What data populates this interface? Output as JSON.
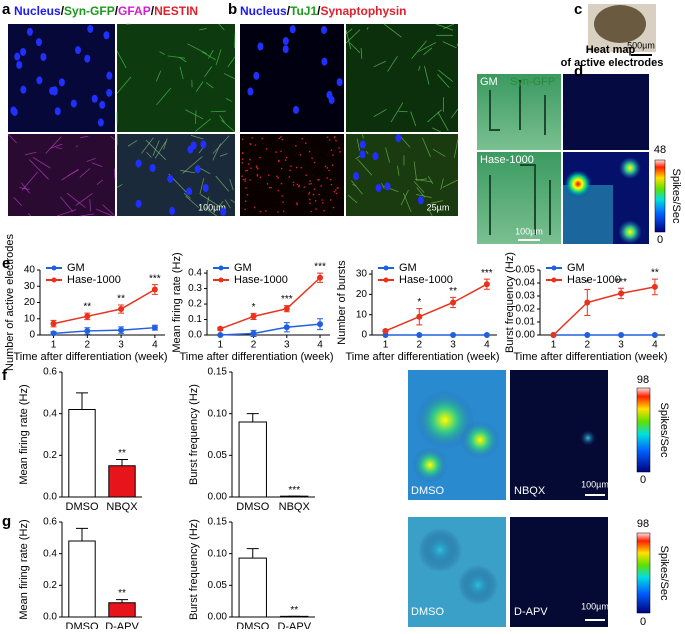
{
  "panel_labels": [
    "a",
    "b",
    "c",
    "d",
    "e",
    "f",
    "g"
  ],
  "panel_a": {
    "header": [
      {
        "text": "Nucleus",
        "color": "#1a1aff"
      },
      {
        "text": "/",
        "color": "#000000"
      },
      {
        "text": "Syn-GFP",
        "color": "#1a9a1a"
      },
      {
        "text": "/",
        "color": "#000000"
      },
      {
        "text": "GFAP",
        "color": "#d020d0"
      },
      {
        "text": "/",
        "color": "#000000"
      },
      {
        "text": "NESTIN",
        "color": "#e0202a"
      }
    ],
    "scale": "100µm"
  },
  "panel_b": {
    "header": [
      {
        "text": "Nucleus",
        "color": "#1a1aff"
      },
      {
        "text": "/",
        "color": "#000000"
      },
      {
        "text": "TuJ1",
        "color": "#1a9a1a"
      },
      {
        "text": "/",
        "color": "#000000"
      },
      {
        "text": "Synaptophysin",
        "color": "#e0202a"
      }
    ],
    "scale": "25µm"
  },
  "panel_c": {
    "scale": "500µm"
  },
  "panel_d": {
    "title": "Heat map of active electrodes",
    "rows": [
      "GM",
      "Hase-1000"
    ],
    "overlay": "Syn-GFP",
    "scale": "100µm",
    "colorbar": {
      "max": "48",
      "min": "0",
      "label": "Spikes/Sec"
    }
  },
  "panel_f_images": {
    "labels": [
      "DMSO",
      "NBQX"
    ],
    "scale": "100µm",
    "colorbar": {
      "max": "98",
      "min": "0",
      "label": "Spikes/Sec"
    }
  },
  "panel_g_images": {
    "labels": [
      "DMSO",
      "D-APV"
    ],
    "scale": "100µm",
    "colorbar": {
      "max": "98",
      "min": "0",
      "label": "Spikes/Sec"
    }
  },
  "chart_data": [
    {
      "type": "line",
      "ylabel": "Number of active electrodes",
      "xlabel": "Time after differentiation (week)",
      "x": [
        1,
        2,
        3,
        4
      ],
      "xlim": [
        0.6,
        4.3
      ],
      "xticks": [
        1,
        2,
        3,
        4
      ],
      "ylim": [
        0,
        40
      ],
      "yticks": [
        0,
        10,
        20,
        30,
        40
      ],
      "series": [
        {
          "name": "GM",
          "color": "#2060e0",
          "values": [
            1,
            2.5,
            3,
            4.5
          ],
          "errors": [
            1,
            2,
            2,
            1.5
          ]
        },
        {
          "name": "Hase-1000",
          "color": "#e8321c",
          "values": [
            7,
            11.5,
            16,
            28
          ],
          "errors": [
            2,
            2,
            2.5,
            3
          ]
        }
      ],
      "significance": [
        null,
        "**",
        "**",
        "***"
      ]
    },
    {
      "type": "line",
      "ylabel": "Mean firing rate (Hz)",
      "xlabel": "Time after differentiation (week)",
      "x": [
        1,
        2,
        3,
        4
      ],
      "xlim": [
        0.6,
        4.3
      ],
      "xticks": [
        1,
        2,
        3,
        4
      ],
      "ylim": [
        0,
        0.42
      ],
      "yticks": [
        {
          "value": 0,
          "label": "0.0"
        },
        0.1,
        0.2,
        0.3,
        0.4
      ],
      "series": [
        {
          "name": "GM",
          "color": "#2060e0",
          "values": [
            0,
            0.01,
            0.05,
            0.07
          ],
          "errors": [
            0.005,
            0.02,
            0.03,
            0.035
          ]
        },
        {
          "name": "Hase-1000",
          "color": "#e8321c",
          "values": [
            0.04,
            0.12,
            0.17,
            0.37
          ],
          "errors": [
            0.01,
            0.02,
            0.02,
            0.03
          ]
        }
      ],
      "significance": [
        null,
        "*",
        "***",
        "***"
      ]
    },
    {
      "type": "line",
      "ylabel": "Number of bursts",
      "xlabel": "Time after differentiation (week)",
      "x": [
        1,
        2,
        3,
        4
      ],
      "xlim": [
        0.6,
        4.3
      ],
      "xticks": [
        1,
        2,
        3,
        4
      ],
      "ylim": [
        0,
        32
      ],
      "yticks": [
        0,
        10,
        20,
        30
      ],
      "series": [
        {
          "name": "GM",
          "color": "#2060e0",
          "values": [
            0,
            0,
            0,
            0
          ],
          "errors": [
            0,
            0,
            0,
            0
          ]
        },
        {
          "name": "Hase-1000",
          "color": "#e8321c",
          "values": [
            2,
            9,
            16,
            25
          ],
          "errors": [
            0.5,
            4,
            2.5,
            2.5
          ]
        }
      ],
      "significance": [
        null,
        "*",
        "**",
        "***"
      ]
    },
    {
      "type": "line",
      "ylabel": "Burst frequency (Hz)",
      "xlabel": "Time after differentiation (week)",
      "x": [
        1,
        2,
        3,
        4
      ],
      "xlim": [
        0.6,
        4.3
      ],
      "xticks": [
        1,
        2,
        3,
        4
      ],
      "ylim": [
        0,
        0.05
      ],
      "yticks": [
        {
          "value": 0,
          "label": "0.00"
        },
        0.01,
        0.02,
        0.03,
        0.04,
        {
          "value": 0.05,
          "label": "0.05"
        }
      ],
      "series": [
        {
          "name": "GM",
          "color": "#2060e0",
          "values": [
            0,
            0,
            0,
            0
          ],
          "errors": [
            0,
            0,
            0,
            0
          ]
        },
        {
          "name": "Hase-1000",
          "color": "#e8321c",
          "values": [
            0,
            0.025,
            0.032,
            0.037
          ],
          "errors": [
            0,
            0.01,
            0.004,
            0.006
          ]
        }
      ],
      "significance": [
        null,
        "*",
        "***",
        "**"
      ]
    },
    {
      "type": "bar",
      "ylabel": "Mean firing rate (Hz)",
      "categories": [
        "DMSO",
        "NBQX"
      ],
      "values": [
        0.42,
        0.15
      ],
      "errors": [
        0.08,
        0.03
      ],
      "colors": [
        "#ffffff",
        "#e8141c"
      ],
      "ylim": [
        0,
        0.6
      ],
      "yticks": [
        {
          "value": 0,
          "label": "0.0"
        },
        0.2,
        0.4,
        0.6
      ],
      "significance": [
        null,
        "**"
      ]
    },
    {
      "type": "bar",
      "ylabel": "Burst frequency (Hz)",
      "categories": [
        "DMSO",
        "NBQX"
      ],
      "values": [
        0.09,
        0.001
      ],
      "errors": [
        0.01,
        0
      ],
      "colors": [
        "#ffffff",
        "#e8141c"
      ],
      "ylim": [
        0,
        0.15
      ],
      "yticks": [
        {
          "value": 0,
          "label": "0.00"
        },
        0.05,
        {
          "value": 0.1,
          "label": "0.10"
        },
        0.15
      ],
      "significance": [
        null,
        "***"
      ]
    },
    {
      "type": "bar",
      "ylabel": "Mean firing rate (Hz)",
      "categories": [
        "DMSO",
        "D-APV"
      ],
      "values": [
        0.48,
        0.09
      ],
      "errors": [
        0.08,
        0.02
      ],
      "colors": [
        "#ffffff",
        "#e8141c"
      ],
      "ylim": [
        0,
        0.6
      ],
      "yticks": [
        {
          "value": 0,
          "label": "0.0"
        },
        0.2,
        0.4,
        0.6
      ],
      "significance": [
        null,
        "**"
      ]
    },
    {
      "type": "bar",
      "ylabel": "Burst frequency (Hz)",
      "categories": [
        "DMSO",
        "D-APV"
      ],
      "values": [
        0.093,
        0.001
      ],
      "errors": [
        0.015,
        0
      ],
      "colors": [
        "#ffffff",
        "#e8141c"
      ],
      "ylim": [
        0,
        0.15
      ],
      "yticks": [
        {
          "value": 0,
          "label": "0.00"
        },
        0.05,
        {
          "value": 0.1,
          "label": "0.10"
        },
        0.15
      ],
      "significance": [
        null,
        "**"
      ]
    }
  ]
}
